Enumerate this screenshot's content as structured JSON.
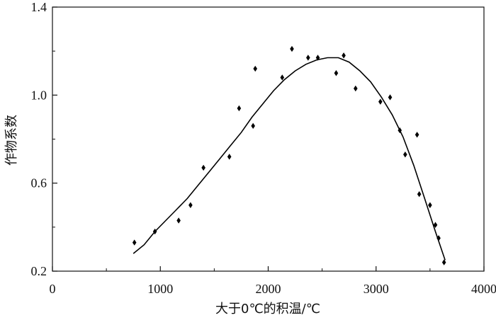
{
  "chart_data": {
    "type": "scatter",
    "title": "",
    "xlabel": "大于0℃的积温/℃",
    "ylabel": "作物系数",
    "xlim": [
      0,
      4000
    ],
    "ylim": [
      0.2,
      1.4
    ],
    "x_ticks": [
      0,
      1000,
      2000,
      3000,
      4000
    ],
    "x_tick_labels": [
      "0",
      "1000",
      "2000",
      "3000",
      "4000"
    ],
    "x_minor_ticks": [
      500,
      1500,
      2500,
      3500
    ],
    "y_ticks": [
      0.2,
      0.6,
      1.0,
      1.4
    ],
    "y_tick_labels": [
      "0.2",
      "0.6",
      "1.0",
      "1.4"
    ],
    "y_minor_ticks": [
      0.4,
      0.8,
      1.2
    ],
    "grid": false,
    "legend": "none",
    "series": [
      {
        "marker": "diamond",
        "color": "#000000",
        "points": [
          [
            760,
            0.33
          ],
          [
            950,
            0.38
          ],
          [
            1170,
            0.43
          ],
          [
            1280,
            0.5
          ],
          [
            1400,
            0.67
          ],
          [
            1640,
            0.72
          ],
          [
            1730,
            0.94
          ],
          [
            1860,
            0.86
          ],
          [
            1880,
            1.12
          ],
          [
            2130,
            1.08
          ],
          [
            2220,
            1.21
          ],
          [
            2370,
            1.17
          ],
          [
            2460,
            1.17
          ],
          [
            2630,
            1.1
          ],
          [
            2700,
            1.18
          ],
          [
            2810,
            1.03
          ],
          [
            3040,
            0.97
          ],
          [
            3130,
            0.99
          ],
          [
            3220,
            0.84
          ],
          [
            3270,
            0.73
          ],
          [
            3380,
            0.82
          ],
          [
            3400,
            0.55
          ],
          [
            3500,
            0.5
          ],
          [
            3550,
            0.41
          ],
          [
            3580,
            0.35
          ],
          [
            3630,
            0.24
          ]
        ]
      },
      {
        "style": "line",
        "color": "#000000",
        "points": [
          [
            750,
            0.28
          ],
          [
            850,
            0.32
          ],
          [
            950,
            0.38
          ],
          [
            1050,
            0.43
          ],
          [
            1150,
            0.48
          ],
          [
            1250,
            0.53
          ],
          [
            1350,
            0.59
          ],
          [
            1450,
            0.65
          ],
          [
            1550,
            0.71
          ],
          [
            1650,
            0.77
          ],
          [
            1750,
            0.83
          ],
          [
            1850,
            0.9
          ],
          [
            1950,
            0.96
          ],
          [
            2050,
            1.02
          ],
          [
            2150,
            1.07
          ],
          [
            2250,
            1.11
          ],
          [
            2350,
            1.14
          ],
          [
            2450,
            1.16
          ],
          [
            2550,
            1.17
          ],
          [
            2600,
            1.17
          ],
          [
            2650,
            1.17
          ],
          [
            2750,
            1.15
          ],
          [
            2850,
            1.11
          ],
          [
            2950,
            1.06
          ],
          [
            3050,
            0.99
          ],
          [
            3150,
            0.91
          ],
          [
            3250,
            0.81
          ],
          [
            3350,
            0.68
          ],
          [
            3450,
            0.53
          ],
          [
            3550,
            0.38
          ],
          [
            3640,
            0.25
          ]
        ]
      }
    ]
  }
}
